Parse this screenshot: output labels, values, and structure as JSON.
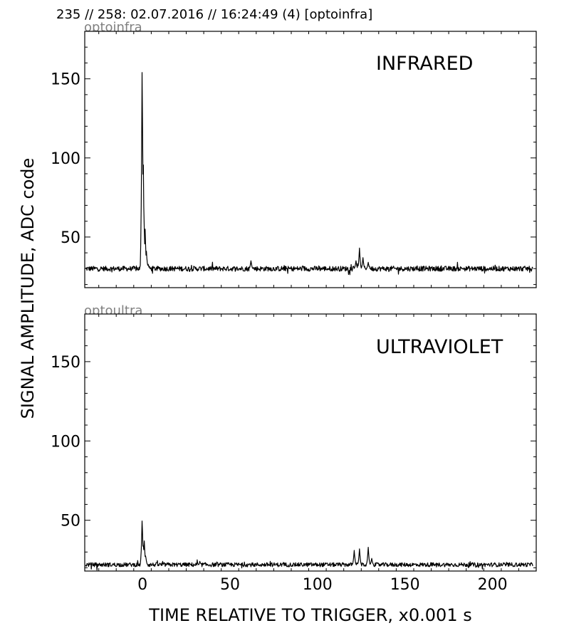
{
  "header": {
    "title": "235 // 258:   02.07.2016 // 16:24:49 (4)  [optoinfra]"
  },
  "chart_data": {
    "type": "line",
    "xlabel": "TIME RELATIVE TO TRIGGER,   x0.001 s",
    "ylabel": "SIGNAL AMPLITUDE,  ADC code",
    "xlim": [
      -33,
      225
    ],
    "ylim": [
      18,
      180
    ],
    "xticks": [
      0,
      50,
      100,
      150,
      200
    ],
    "yticks": [
      50,
      100,
      150
    ],
    "grid": false,
    "line_color": "#000000",
    "panels": [
      {
        "tag": "optoinfra",
        "label": "INFRARED",
        "baseline": 30,
        "noise": 1.6,
        "features": [
          {
            "x": -0.2,
            "y": 165
          },
          {
            "x": 0.4,
            "y": 108
          },
          {
            "x": 0.9,
            "y": 60
          },
          {
            "x": 1.5,
            "y": 55
          },
          {
            "x": 2.2,
            "y": 42
          },
          {
            "x": 3.2,
            "y": 33
          },
          {
            "x": 62,
            "y": 35
          },
          {
            "x": 122,
            "y": 35
          },
          {
            "x": 124,
            "y": 43
          },
          {
            "x": 126,
            "y": 37
          },
          {
            "x": 129,
            "y": 34
          },
          {
            "x": 184,
            "y": 25
          }
        ]
      },
      {
        "tag": "optoultra",
        "label": "ULTRAVIOLET",
        "baseline": 22,
        "noise": 1.3,
        "features": [
          {
            "x": -0.2,
            "y": 52
          },
          {
            "x": 0.4,
            "y": 36
          },
          {
            "x": 1.0,
            "y": 37
          },
          {
            "x": 1.8,
            "y": 28
          },
          {
            "x": 121,
            "y": 31
          },
          {
            "x": 124,
            "y": 32
          },
          {
            "x": 129,
            "y": 33
          },
          {
            "x": 131,
            "y": 26
          }
        ]
      }
    ]
  }
}
